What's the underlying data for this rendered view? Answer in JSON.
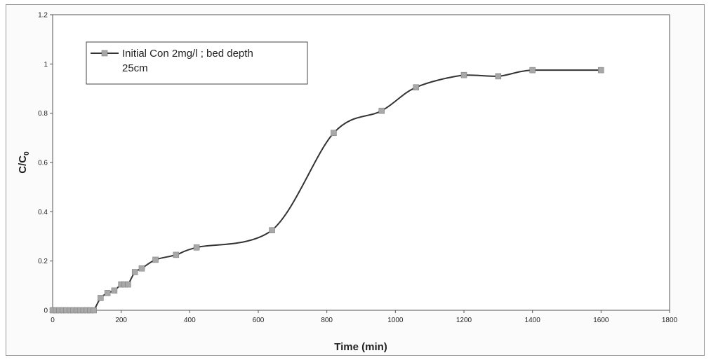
{
  "chart_data": {
    "type": "line",
    "xlabel": "Time (min)",
    "ylabel": "C/C",
    "ylabel_subscript": "0",
    "xlim": [
      0,
      1800
    ],
    "ylim": [
      0,
      1.2
    ],
    "x_ticks": [
      "0",
      "200",
      "400",
      "600",
      "800",
      "1000",
      "1200",
      "1400",
      "1600",
      "1800"
    ],
    "y_ticks": [
      "0",
      "0.2",
      "0.4",
      "0.6",
      "0.8",
      "1",
      "1.2"
    ],
    "grid": false,
    "legend_position": "top-left",
    "series": [
      {
        "name": "Initial Con 2mg/l ; bed depth 25cm",
        "name_lines": [
          "Initial Con 2mg/l ; bed depth",
          "25cm"
        ],
        "color": "#333333",
        "marker_color": "#a8a8a8",
        "marker": "square",
        "x": [
          0,
          10,
          20,
          30,
          40,
          50,
          60,
          70,
          80,
          90,
          100,
          110,
          120,
          140,
          160,
          180,
          200,
          210,
          220,
          240,
          260,
          300,
          360,
          420,
          640,
          820,
          960,
          1060,
          1200,
          1300,
          1400,
          1600
        ],
        "y": [
          0,
          0,
          0,
          0,
          0,
          0,
          0,
          0,
          0,
          0,
          0,
          0,
          0,
          0.05,
          0.07,
          0.08,
          0.105,
          0.105,
          0.105,
          0.155,
          0.17,
          0.205,
          0.225,
          0.255,
          0.325,
          0.72,
          0.81,
          0.905,
          0.955,
          0.95,
          0.975,
          0.975
        ]
      }
    ]
  }
}
